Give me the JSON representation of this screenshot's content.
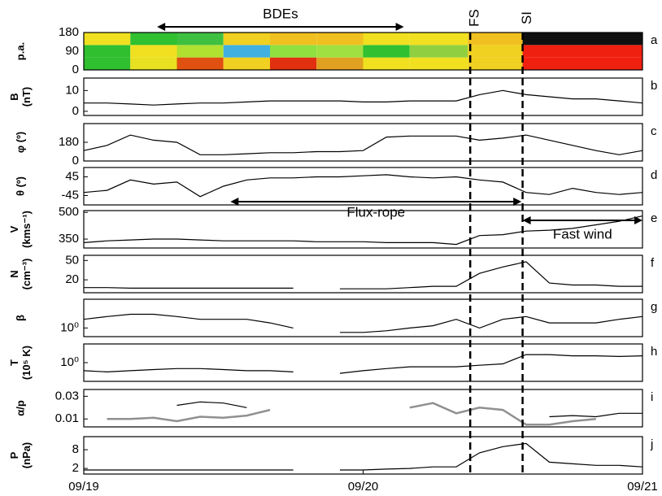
{
  "chart_data": [
    {
      "type": "heatmap",
      "letter": "a",
      "ylabel": [
        "p.a."
      ],
      "xlim": [
        0,
        48
      ],
      "ylim": [
        0,
        180
      ],
      "yticks": [
        0,
        90,
        180
      ],
      "time_bins": [
        0,
        4,
        8,
        12,
        16,
        20,
        24,
        28,
        33,
        37.7,
        48
      ],
      "pa_bins": [
        0,
        60,
        120,
        180
      ],
      "colors": [
        [
          "#2fbf2f",
          "#2fbf2f",
          "#f0e020"
        ],
        [
          "#e8e020",
          "#f0e020",
          "#30c030"
        ],
        [
          "#e05010",
          "#b0e030",
          "#40c040"
        ],
        [
          "#f0d020",
          "#40b0e0",
          "#f0d020"
        ],
        [
          "#e03010",
          "#90e040",
          "#f0c020"
        ],
        [
          "#e0a020",
          "#a0e040",
          "#f0c020"
        ],
        [
          "#f0e020",
          "#30c030",
          "#f0e020"
        ],
        [
          "#f0e020",
          "#90d040",
          "#f0e020"
        ],
        [
          "#f0d020",
          "#f0d020",
          "#f0c020"
        ],
        [
          "#f02010",
          "#f02010",
          "#101010"
        ]
      ],
      "arrows": [
        {
          "label": "BDEs",
          "x0": 6.3,
          "x1": 27.5
        }
      ],
      "markers": [
        {
          "label": "FS",
          "x": 33.2
        },
        {
          "label": "SI",
          "x": 37.7
        }
      ]
    },
    {
      "type": "line",
      "letter": "b",
      "ylabel": [
        "B",
        "(nT)"
      ],
      "xlim": [
        0,
        48
      ],
      "ylim": [
        -2,
        16
      ],
      "yticks": [
        0,
        10
      ],
      "x": [
        0,
        2,
        4,
        6,
        8,
        10,
        12,
        14,
        16,
        18,
        20,
        22,
        24,
        26,
        28,
        30,
        32,
        34,
        36,
        38,
        40,
        42,
        44,
        46,
        48
      ],
      "series": [
        {
          "color": "#000000",
          "values": [
            4,
            4,
            3.5,
            3,
            3.5,
            4,
            4,
            4.5,
            5,
            5,
            5,
            5,
            4.5,
            4.5,
            5,
            5,
            5,
            8,
            10,
            8,
            7,
            6,
            6,
            5,
            4
          ]
        }
      ]
    },
    {
      "type": "line",
      "letter": "c",
      "ylabel": [
        "φ (º)"
      ],
      "xlim": [
        0,
        48
      ],
      "ylim": [
        0,
        360
      ],
      "yticks": [
        0,
        180
      ],
      "x": [
        0,
        2,
        4,
        6,
        8,
        10,
        12,
        14,
        16,
        18,
        20,
        22,
        24,
        26,
        28,
        30,
        32,
        34,
        36,
        38,
        40,
        42,
        44,
        46,
        48
      ],
      "series": [
        {
          "color": "#000000",
          "values": [
            100,
            150,
            250,
            200,
            180,
            60,
            60,
            70,
            80,
            80,
            90,
            90,
            100,
            230,
            240,
            240,
            240,
            200,
            220,
            250,
            200,
            150,
            100,
            60,
            100
          ]
        }
      ]
    },
    {
      "type": "line",
      "letter": "d",
      "ylabel": [
        "θ (º)"
      ],
      "xlim": [
        0,
        48
      ],
      "ylim": [
        -90,
        90
      ],
      "yticks": [
        45,
        -45
      ],
      "x": [
        0,
        2,
        4,
        6,
        8,
        10,
        12,
        14,
        16,
        18,
        20,
        22,
        24,
        26,
        28,
        30,
        32,
        34,
        36,
        38,
        40,
        42,
        44,
        46,
        48
      ],
      "series": [
        {
          "color": "#000000",
          "values": [
            -30,
            -20,
            30,
            10,
            20,
            -50,
            0,
            30,
            40,
            40,
            45,
            45,
            50,
            55,
            45,
            40,
            45,
            30,
            20,
            -30,
            -40,
            -10,
            -30,
            -40,
            -30
          ]
        }
      ],
      "arrows": [
        {
          "label": "Flux-rope",
          "x0": 12.6,
          "x1": 37.6
        }
      ]
    },
    {
      "type": "line",
      "letter": "e",
      "ylabel": [
        "V",
        "(kms⁻¹)"
      ],
      "xlim": [
        0,
        48
      ],
      "ylim": [
        300,
        510
      ],
      "yticks": [
        350,
        500
      ],
      "x": [
        0,
        2,
        4,
        6,
        8,
        10,
        12,
        14,
        16,
        18,
        20,
        22,
        24,
        26,
        28,
        30,
        32,
        34,
        36,
        38,
        40,
        42,
        44,
        46,
        48
      ],
      "series": [
        {
          "color": "#000000",
          "values": [
            330,
            340,
            345,
            350,
            350,
            345,
            340,
            340,
            340,
            340,
            335,
            335,
            335,
            330,
            330,
            330,
            320,
            370,
            375,
            395,
            400,
            410,
            430,
            450,
            480
          ]
        }
      ],
      "arrows": [
        {
          "label": "Fast wind",
          "x0": 37.7,
          "x1": 48
        }
      ]
    },
    {
      "type": "line",
      "letter": "f",
      "ylabel": [
        "N",
        "(cm⁻³)"
      ],
      "xlim": [
        0,
        48
      ],
      "ylim": [
        0,
        58
      ],
      "yticks": [
        20,
        50
      ],
      "x": [
        0,
        2,
        4,
        6,
        8,
        10,
        12,
        14,
        16,
        18,
        20,
        22,
        24,
        26,
        28,
        30,
        32,
        34,
        36,
        38,
        40,
        42,
        44,
        46,
        48
      ],
      "series": [
        {
          "color": "#000000",
          "values": [
            8,
            8,
            7,
            7,
            7,
            7,
            7,
            7,
            7,
            7,
            null,
            6,
            6,
            6,
            8,
            10,
            10,
            30,
            40,
            48,
            15,
            12,
            12,
            10,
            10
          ]
        }
      ]
    },
    {
      "type": "line",
      "letter": "g",
      "ylabel": [
        "β"
      ],
      "log": true,
      "xlim": [
        0,
        48
      ],
      "ylim": [
        0.5,
        10
      ],
      "yticks": [
        {
          "value": 1,
          "label": "10⁰"
        }
      ],
      "x": [
        0,
        2,
        4,
        6,
        8,
        10,
        12,
        14,
        16,
        18,
        20,
        22,
        24,
        26,
        28,
        30,
        32,
        34,
        36,
        38,
        40,
        42,
        44,
        46,
        48
      ],
      "series": [
        {
          "color": "#000000",
          "values": [
            2,
            2.5,
            3,
            3,
            2.5,
            2,
            2,
            2,
            1.5,
            1,
            null,
            0.7,
            0.7,
            0.8,
            1,
            1.2,
            2,
            1,
            2,
            2.5,
            1.5,
            1.5,
            1.5,
            2,
            2.5
          ]
        }
      ]
    },
    {
      "type": "line",
      "letter": "h",
      "ylabel": [
        "T",
        "(10⁵ K)"
      ],
      "log": true,
      "xlim": [
        0,
        48
      ],
      "ylim": [
        0.2,
        5
      ],
      "yticks": [
        {
          "value": 1,
          "label": "10⁰"
        }
      ],
      "x": [
        0,
        2,
        4,
        6,
        8,
        10,
        12,
        14,
        16,
        18,
        20,
        22,
        24,
        26,
        28,
        30,
        32,
        34,
        36,
        38,
        40,
        42,
        44,
        46,
        48
      ],
      "series": [
        {
          "color": "#000000",
          "values": [
            0.5,
            0.45,
            0.5,
            0.55,
            0.6,
            0.6,
            0.55,
            0.5,
            0.5,
            0.45,
            null,
            0.4,
            0.5,
            0.6,
            0.7,
            0.7,
            0.7,
            0.8,
            0.9,
            2,
            2,
            1.8,
            1.8,
            1.7,
            1.8
          ]
        }
      ]
    },
    {
      "type": "line",
      "letter": "i",
      "ylabel": [
        "α/p"
      ],
      "xlim": [
        0,
        48
      ],
      "ylim": [
        0.003,
        0.036
      ],
      "yticks": [
        0.01,
        0.03
      ],
      "x": [
        0,
        2,
        4,
        6,
        8,
        10,
        12,
        14,
        16,
        18,
        20,
        22,
        24,
        26,
        28,
        30,
        32,
        34,
        36,
        38,
        40,
        42,
        44,
        46,
        48
      ],
      "series": [
        {
          "color": "#000000",
          "values": [
            null,
            null,
            null,
            null,
            0.022,
            0.025,
            0.024,
            0.02,
            null,
            null,
            null,
            null,
            null,
            null,
            null,
            null,
            null,
            null,
            null,
            null,
            0.012,
            0.013,
            0.012,
            0.015,
            0.015
          ]
        },
        {
          "color": "#909090",
          "values": [
            null,
            0.01,
            0.01,
            0.011,
            0.008,
            0.012,
            0.011,
            0.013,
            0.018,
            null,
            null,
            null,
            null,
            null,
            0.02,
            0.024,
            0.015,
            0.02,
            0.018,
            0.005,
            0.005,
            0.008,
            0.01,
            null,
            null
          ]
        }
      ]
    },
    {
      "type": "line",
      "letter": "j",
      "ylabel": [
        "P",
        "(nPa)"
      ],
      "xlim": [
        0,
        48
      ],
      "ylim": [
        0.2,
        12.2
      ],
      "yticks": [
        2,
        8
      ],
      "xticks": [
        {
          "value": 0,
          "label": "09/19"
        },
        {
          "value": 24,
          "label": "09/20"
        },
        {
          "value": 48,
          "label": "09/21"
        }
      ],
      "x": [
        0,
        2,
        4,
        6,
        8,
        10,
        12,
        14,
        16,
        18,
        20,
        22,
        24,
        26,
        28,
        30,
        32,
        34,
        36,
        38,
        40,
        42,
        44,
        46,
        48
      ],
      "series": [
        {
          "color": "#000000",
          "values": [
            1.5,
            1.5,
            1.5,
            1.5,
            1.5,
            1.5,
            1.5,
            1.5,
            1.5,
            1.5,
            null,
            1.5,
            1.5,
            1.8,
            2,
            2.5,
            2.5,
            7,
            9,
            10,
            4,
            3.5,
            3,
            3,
            2.5
          ]
        }
      ]
    }
  ]
}
